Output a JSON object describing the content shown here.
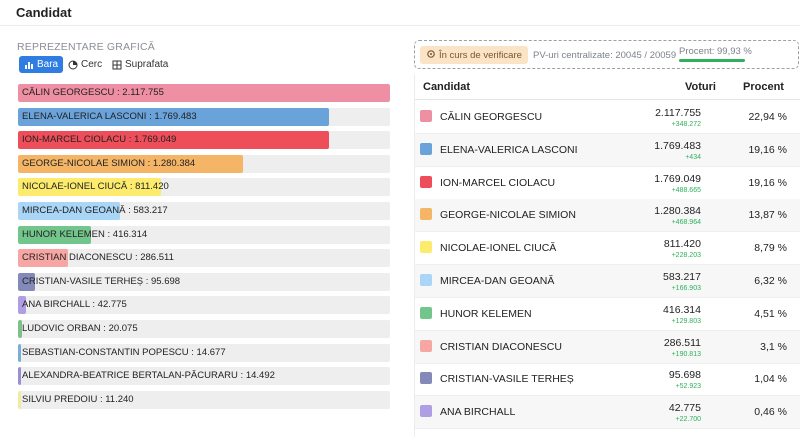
{
  "header": {
    "title": "Candidat"
  },
  "chart_section": {
    "title": "REPREZENTARE GRAFICĂ",
    "toggles": [
      {
        "label": "Bara",
        "icon": "bar-chart-icon",
        "active": true
      },
      {
        "label": "Cerc",
        "icon": "pie-chart-icon",
        "active": false
      },
      {
        "label": "Suprafata",
        "icon": "area-chart-icon",
        "active": false
      }
    ]
  },
  "status": {
    "badge_label": "În curs de verificare",
    "badge_icon": "gear-icon",
    "pv_label": "PV-uri centralizate: 20045 / 20059",
    "percent_label": "Procent: 99,93 %",
    "percent_value": 99.93
  },
  "table": {
    "headers": {
      "candidate": "Candidat",
      "votes": "Voturi",
      "percent": "Procent"
    },
    "rows": [
      {
        "name": "CĂLIN GEORGESCU",
        "votes": "2.117.755",
        "delta": "+348.272",
        "percent": "22,94 %",
        "color": "#ef8fa3"
      },
      {
        "name": "ELENA-VALERICA LASCONI",
        "votes": "1.769.483",
        "delta": "+434",
        "percent": "19,16 %",
        "color": "#6aa2da"
      },
      {
        "name": "ION-MARCEL CIOLACU",
        "votes": "1.769.049",
        "delta": "+488.665",
        "percent": "19,16 %",
        "color": "#ee4e59"
      },
      {
        "name": "GEORGE-NICOLAE SIMION",
        "votes": "1.280.384",
        "delta": "+468.964",
        "percent": "13,87 %",
        "color": "#f5b566"
      },
      {
        "name": "NICOLAE-IONEL CIUCĂ",
        "votes": "811.420",
        "delta": "+228.203",
        "percent": "8,79 %",
        "color": "#fdeb6d"
      },
      {
        "name": "MIRCEA-DAN GEOANĂ",
        "votes": "583.217",
        "delta": "+166.903",
        "percent": "6,32 %",
        "color": "#a9d5f6"
      },
      {
        "name": "HUNOR KELEMEN",
        "votes": "416.314",
        "delta": "+129.803",
        "percent": "4,51 %",
        "color": "#73c68b"
      },
      {
        "name": "CRISTIAN DIACONESCU",
        "votes": "286.511",
        "delta": "+190.813",
        "percent": "3,1 %",
        "color": "#f6a7a3"
      },
      {
        "name": "CRISTIAN-VASILE TERHEȘ",
        "votes": "95.698",
        "delta": "+52.923",
        "percent": "1,04 %",
        "color": "#8389b8"
      },
      {
        "name": "ANA BIRCHALL",
        "votes": "42.775",
        "delta": "+22.700",
        "percent": "0,46 %",
        "color": "#b09ee4"
      }
    ]
  },
  "chart_data": {
    "type": "bar",
    "orientation": "horizontal",
    "categories": [
      "CĂLIN GEORGESCU",
      "ELENA-VALERICA LASCONI",
      "ION-MARCEL CIOLACU",
      "GEORGE-NICOLAE SIMION",
      "NICOLAE-IONEL CIUCĂ",
      "MIRCEA-DAN GEOANĂ",
      "HUNOR KELEMEN",
      "CRISTIAN DIACONESCU",
      "CRISTIAN-VASILE TERHEȘ",
      "ANA BIRCHALL",
      "LUDOVIC ORBAN",
      "SEBASTIAN-CONSTANTIN POPESCU",
      "ALEXANDRA-BEATRICE BERTALAN-PĂCURARU",
      "SILVIU PREDOIU"
    ],
    "values": [
      2117755,
      1769483,
      1769049,
      1280384,
      811420,
      583217,
      416314,
      286511,
      95698,
      42775,
      20075,
      14677,
      14492,
      11240
    ],
    "labels": [
      "CĂLIN GEORGESCU : 2.117.755",
      "ELENA-VALERICA LASCONI : 1.769.483",
      "ION-MARCEL CIOLACU : 1.769.049",
      "GEORGE-NICOLAE SIMION : 1.280.384",
      "NICOLAE-IONEL CIUCĂ : 811.420",
      "MIRCEA-DAN GEOANĂ : 583.217",
      "HUNOR KELEMEN : 416.314",
      "CRISTIAN DIACONESCU : 286.511",
      "CRISTIAN-VASILE TERHEȘ : 95.698",
      "ANA BIRCHALL : 42.775",
      "LUDOVIC ORBAN : 20.075",
      "SEBASTIAN-CONSTANTIN POPESCU : 14.677",
      "ALEXANDRA-BEATRICE BERTALAN-PĂCURARU : 14.492",
      "SILVIU PREDOIU : 11.240"
    ],
    "colors": [
      "#ef8fa3",
      "#6aa2da",
      "#ee4e59",
      "#f5b566",
      "#fdeb6d",
      "#a9d5f6",
      "#73c68b",
      "#f6a7a3",
      "#8389b8",
      "#b09ee4",
      "#7fbf8a",
      "#79aed9",
      "#9b8fd0",
      "#f3ea9e"
    ],
    "xlim": [
      0,
      2117755
    ],
    "grid": false,
    "legend": "none"
  }
}
